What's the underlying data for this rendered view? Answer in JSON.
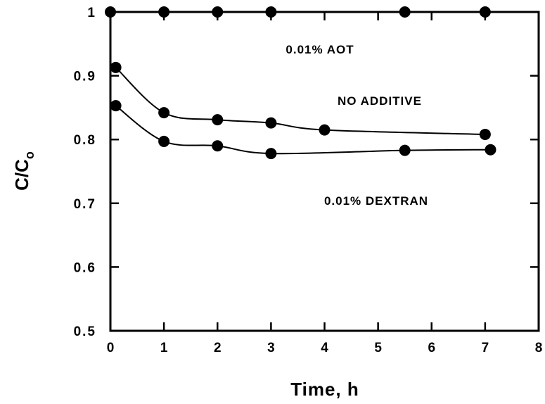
{
  "chart_data": {
    "type": "scatter",
    "xlabel": "Time,  h",
    "ylabel": [
      "C/C",
      "o"
    ],
    "xlim": [
      0,
      8
    ],
    "ylim": [
      0.5,
      1
    ],
    "xticks": [
      0,
      1,
      2,
      3,
      4,
      5,
      6,
      7,
      8
    ],
    "yticks": [
      0.5,
      0.6,
      0.7,
      0.8,
      0.9,
      1
    ],
    "color": "#000000",
    "series": [
      {
        "name": "0.01%  AOT",
        "x": [
          0,
          1,
          2,
          3,
          5.5,
          7
        ],
        "values": [
          1,
          1,
          1,
          1,
          1,
          1
        ]
      },
      {
        "name": "NO  ADDITIVE",
        "x": [
          0.1,
          1,
          2,
          3,
          4,
          7
        ],
        "values": [
          0.913,
          0.842,
          0.831,
          0.826,
          0.815,
          0.808
        ]
      },
      {
        "name": "0.01%   DEXTRAN",
        "x": [
          0.1,
          1,
          2,
          3,
          5.5,
          7.1
        ],
        "values": [
          0.853,
          0.797,
          0.79,
          0.778,
          0.783,
          0.784
        ]
      }
    ]
  }
}
